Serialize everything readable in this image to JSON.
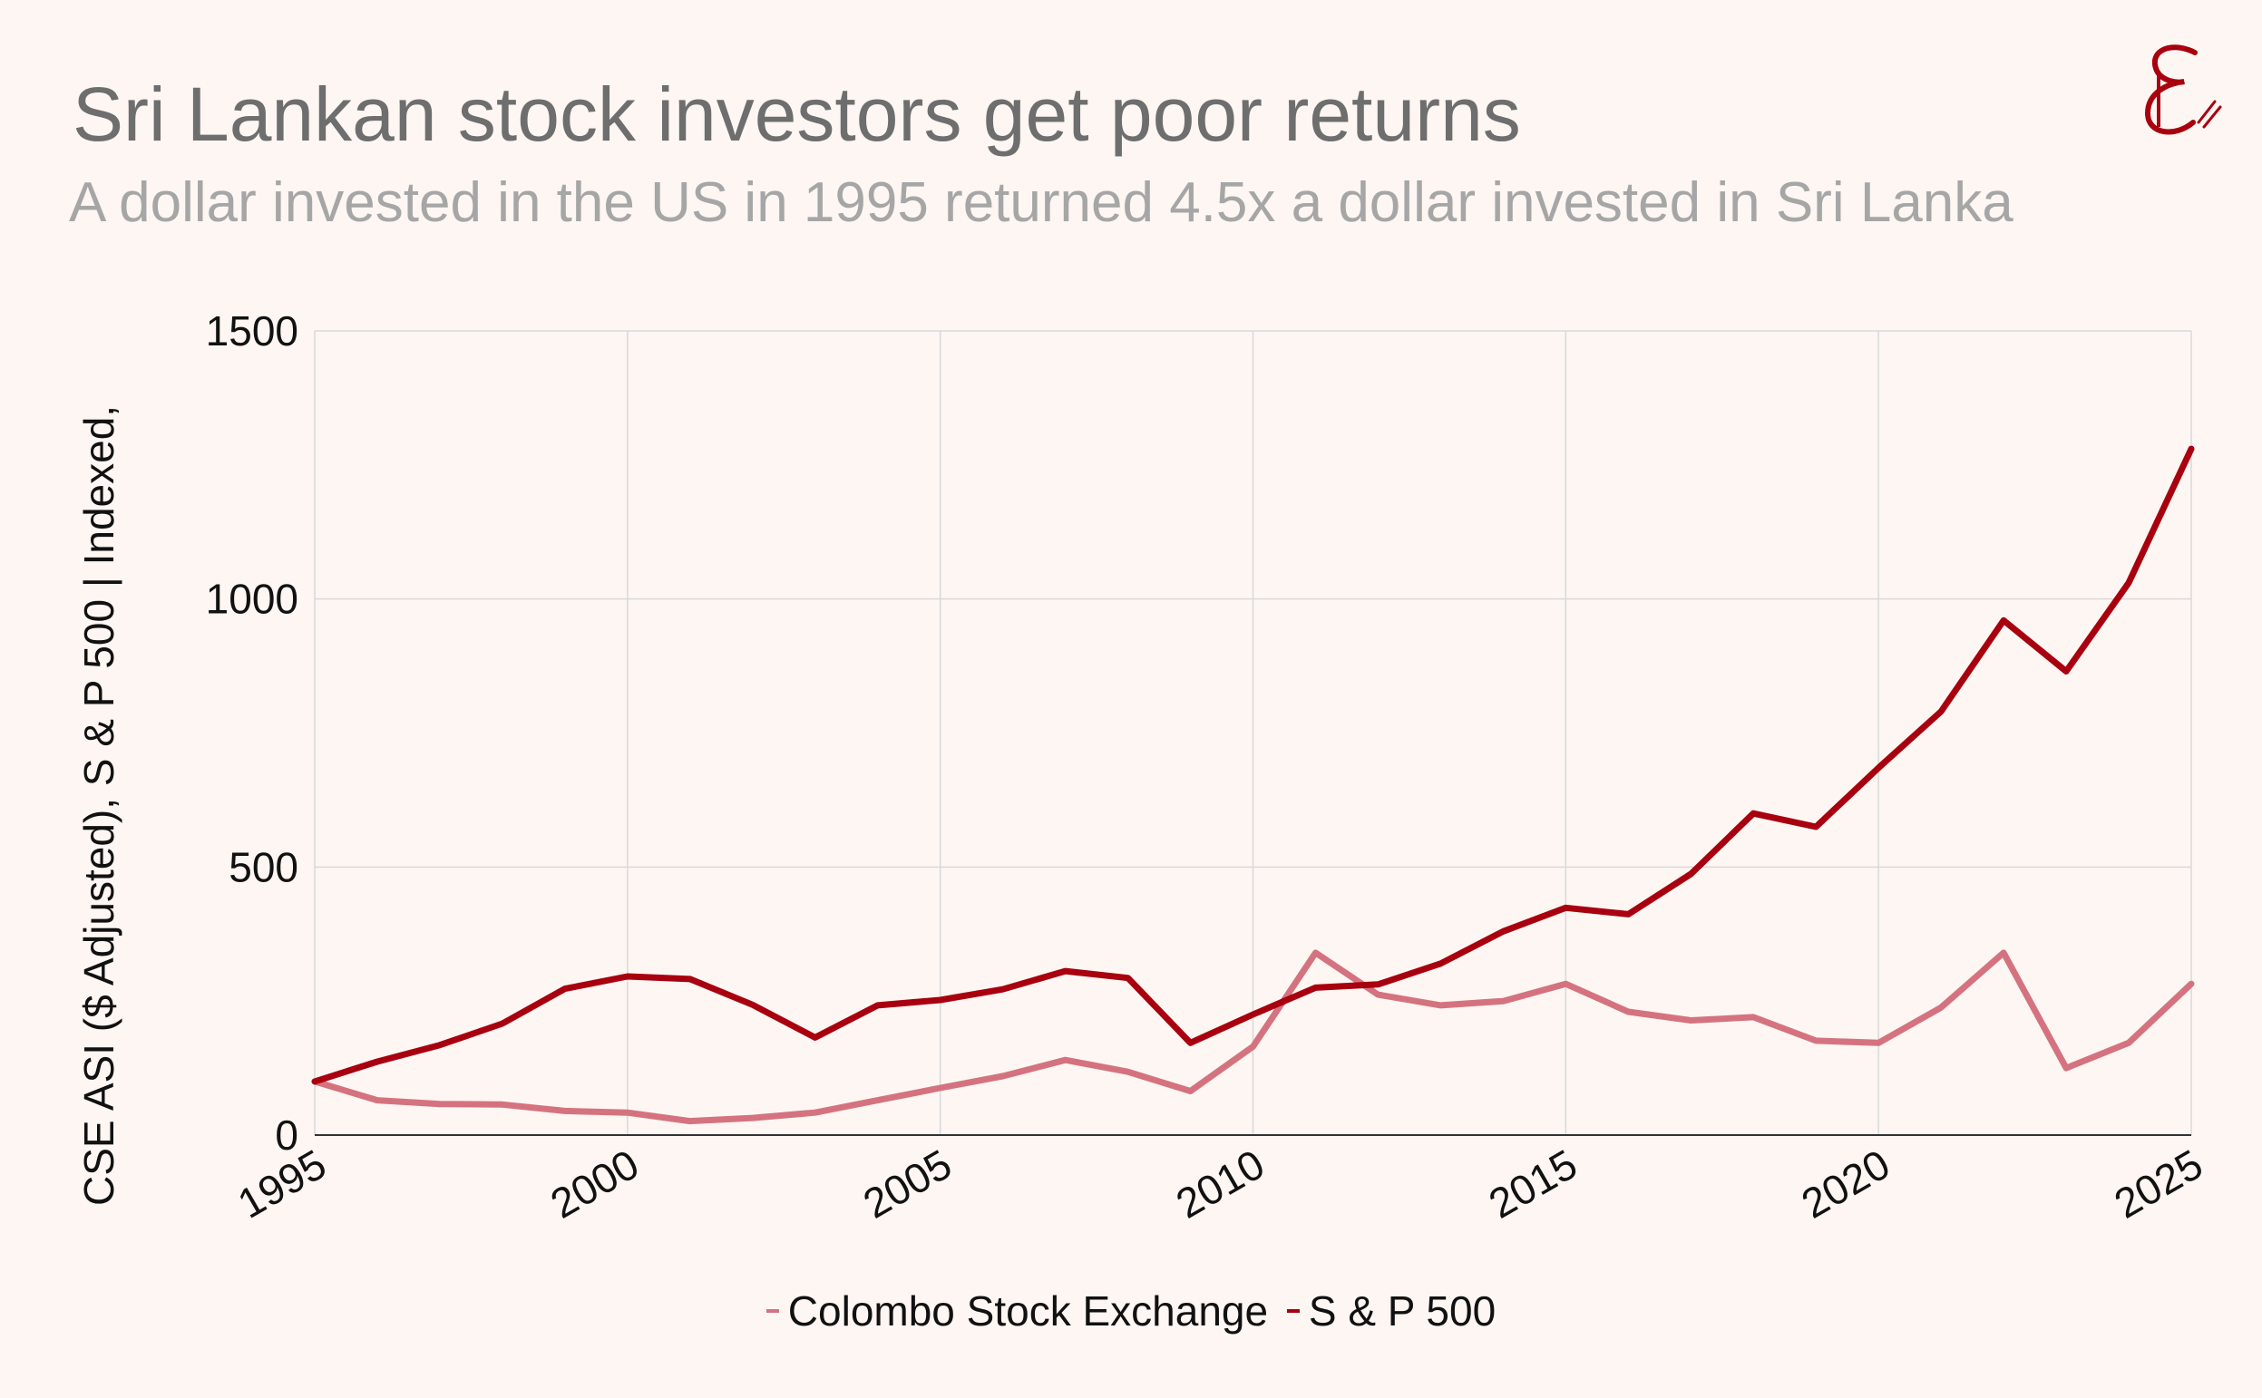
{
  "title": "Sri Lankan stock investors get poor returns",
  "subtitle": "A dollar invested in the US in 1995 returned 4.5x a dollar invested in Sri Lanka",
  "logo": "E signature logo",
  "colors": {
    "cse": "#d4737f",
    "sp500": "#a8000f",
    "grid": "#d9d9d9",
    "background": "#fdf6f3"
  },
  "chart_data": {
    "type": "line",
    "ylabel": "CSE ASI ($ Adjusted), S & P 500 | Indexed,",
    "xlabel": "",
    "xlim": [
      1995,
      2025
    ],
    "ylim": [
      0,
      1500
    ],
    "xticks": [
      "1995",
      "2000",
      "2005",
      "2010",
      "2015",
      "2020",
      "2025"
    ],
    "yticks": [
      "0",
      "500",
      "1000",
      "1500"
    ],
    "grid": true,
    "legend_position": "bottom-center",
    "x": [
      1995,
      1996,
      1997,
      1998,
      1999,
      2000,
      2001,
      2002,
      2003,
      2004,
      2005,
      2006,
      2007,
      2008,
      2009,
      2010,
      2011,
      2012,
      2013,
      2014,
      2015,
      2016,
      2017,
      2018,
      2019,
      2020,
      2021,
      2022,
      2023,
      2024,
      2025
    ],
    "series": [
      {
        "name": "Colombo Stock Exchange",
        "values": [
          100,
          65,
          58,
          57,
          45,
          42,
          26,
          32,
          42,
          65,
          88,
          110,
          140,
          118,
          82,
          165,
          340,
          262,
          242,
          250,
          282,
          230,
          214,
          220,
          176,
          172,
          238,
          340,
          125,
          172,
          282
        ]
      },
      {
        "name": "S & P 500",
        "values": [
          100,
          137,
          168,
          208,
          273,
          296,
          291,
          243,
          182,
          242,
          252,
          272,
          306,
          293,
          172,
          225,
          275,
          281,
          320,
          380,
          424,
          412,
          487,
          600,
          575,
          685,
          790,
          960,
          865,
          1030,
          1280
        ]
      }
    ]
  }
}
